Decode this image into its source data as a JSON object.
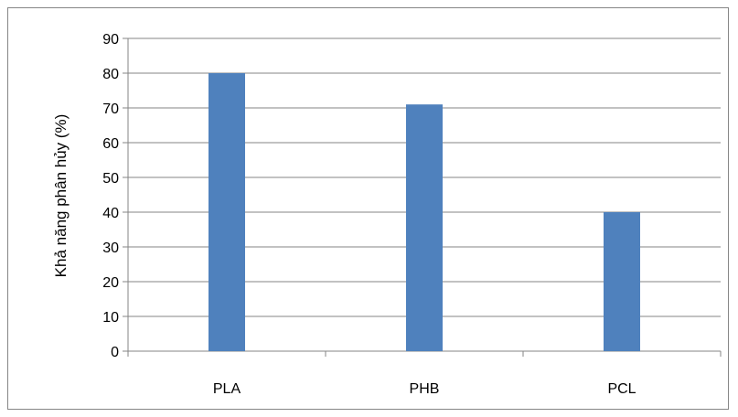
{
  "chart_data": {
    "type": "bar",
    "categories": [
      "PLA",
      "PHB",
      "PCL"
    ],
    "values": [
      80,
      71,
      40
    ],
    "title": "",
    "xlabel": "",
    "ylabel": "Khả năng phân hủy (%)",
    "ylim": [
      0,
      90
    ],
    "yticks": [
      0,
      10,
      20,
      30,
      40,
      50,
      60,
      70,
      80,
      90
    ],
    "grid": true,
    "legend": "none",
    "colors": {
      "bar": "#4f81bd",
      "grid": "#868686",
      "axis": "#868686"
    }
  }
}
